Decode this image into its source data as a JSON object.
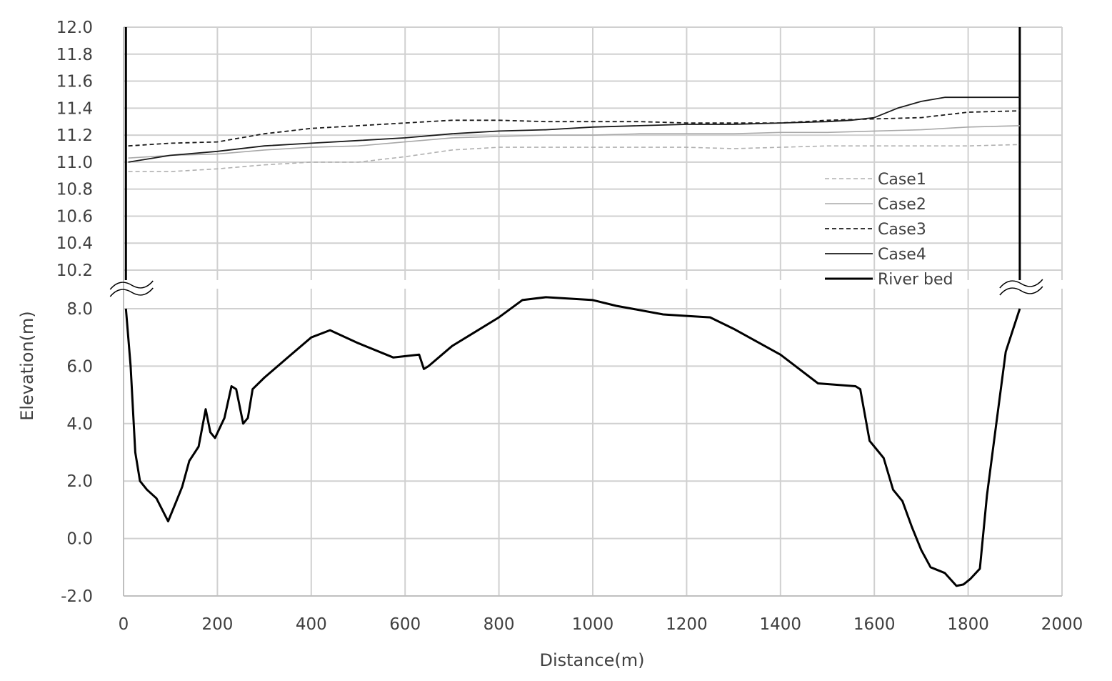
{
  "chart_data": {
    "type": "line",
    "title": "",
    "xlabel": "Distance(m)",
    "ylabel": "Elevation(m)",
    "xlim": [
      0,
      2000
    ],
    "xticks": [
      "0",
      "200",
      "400",
      "600",
      "800",
      "1000",
      "1200",
      "1400",
      "1600",
      "1800",
      "2000"
    ],
    "axis_break": "between 10.2 and 8.0 (wavy break marks on both side walls)",
    "upper_panel": {
      "ylim": [
        10.2,
        12.0
      ],
      "yticks": [
        "12.0",
        "11.8",
        "11.6",
        "11.4",
        "11.2",
        "11.0",
        "10.8",
        "10.6",
        "10.4",
        "10.2"
      ]
    },
    "lower_panel": {
      "ylim": [
        -2.0,
        8.0
      ],
      "yticks": [
        "8.0",
        "6.0",
        "4.0",
        "2.0",
        "0.0",
        "-2.0"
      ]
    },
    "grid": true,
    "legend_position": "right, inside plot area near the axis break",
    "series": [
      {
        "name": "Case1",
        "panel": "upper",
        "style": "dashed",
        "color": "#b0b0b0",
        "x": [
          10,
          100,
          200,
          300,
          400,
          500,
          600,
          700,
          800,
          900,
          1000,
          1100,
          1200,
          1300,
          1400,
          1500,
          1600,
          1700,
          1800,
          1910
        ],
        "y": [
          10.93,
          10.93,
          10.95,
          10.98,
          11.0,
          11.0,
          11.04,
          11.09,
          11.11,
          11.11,
          11.11,
          11.11,
          11.11,
          11.1,
          11.11,
          11.12,
          11.12,
          11.12,
          11.12,
          11.13
        ]
      },
      {
        "name": "Case2",
        "panel": "upper",
        "style": "solid",
        "color": "#a8a8a8",
        "x": [
          10,
          100,
          200,
          300,
          400,
          500,
          600,
          700,
          800,
          900,
          1000,
          1100,
          1200,
          1300,
          1400,
          1500,
          1600,
          1700,
          1800,
          1910
        ],
        "y": [
          11.03,
          11.05,
          11.06,
          11.09,
          11.11,
          11.12,
          11.15,
          11.18,
          11.19,
          11.2,
          11.2,
          11.21,
          11.21,
          11.21,
          11.22,
          11.22,
          11.23,
          11.24,
          11.26,
          11.27
        ]
      },
      {
        "name": "Case3",
        "panel": "upper",
        "style": "dashed",
        "color": "#1a1a1a",
        "x": [
          10,
          100,
          200,
          300,
          400,
          500,
          600,
          700,
          800,
          900,
          1000,
          1100,
          1200,
          1300,
          1400,
          1500,
          1600,
          1700,
          1800,
          1910
        ],
        "y": [
          11.12,
          11.14,
          11.15,
          11.21,
          11.25,
          11.27,
          11.29,
          11.31,
          11.31,
          11.3,
          11.3,
          11.3,
          11.29,
          11.29,
          11.29,
          11.31,
          11.32,
          11.33,
          11.37,
          11.38
        ]
      },
      {
        "name": "Case4",
        "panel": "upper",
        "style": "solid",
        "color": "#1a1a1a",
        "x": [
          10,
          100,
          200,
          300,
          400,
          500,
          600,
          700,
          800,
          900,
          1000,
          1100,
          1200,
          1300,
          1400,
          1500,
          1550,
          1600,
          1650,
          1700,
          1750,
          1800,
          1910
        ],
        "y": [
          11.0,
          11.05,
          11.08,
          11.12,
          11.14,
          11.16,
          11.18,
          11.21,
          11.23,
          11.24,
          11.26,
          11.27,
          11.28,
          11.28,
          11.29,
          11.3,
          11.31,
          11.33,
          11.4,
          11.45,
          11.48,
          11.48,
          11.48
        ]
      },
      {
        "name": "River bed",
        "panel": "lower",
        "style": "solid",
        "color": "#000000",
        "x": [
          5,
          15,
          25,
          35,
          50,
          70,
          95,
          110,
          125,
          140,
          160,
          175,
          185,
          195,
          215,
          230,
          240,
          255,
          265,
          275,
          300,
          350,
          400,
          440,
          500,
          575,
          630,
          640,
          650,
          700,
          750,
          800,
          850,
          900,
          1000,
          1050,
          1150,
          1200,
          1250,
          1300,
          1400,
          1480,
          1560,
          1570,
          1590,
          1610,
          1620,
          1640,
          1660,
          1680,
          1700,
          1720,
          1750,
          1775,
          1790,
          1805,
          1825,
          1840,
          1860,
          1880,
          1900,
          1910
        ],
        "y": [
          8.0,
          6.0,
          3.0,
          2.0,
          1.7,
          1.4,
          0.6,
          1.2,
          1.8,
          2.7,
          3.2,
          4.5,
          3.7,
          3.5,
          4.2,
          5.3,
          5.2,
          4.0,
          4.2,
          5.2,
          5.6,
          6.3,
          7.0,
          7.25,
          6.8,
          6.3,
          6.4,
          5.9,
          6.0,
          6.7,
          7.2,
          7.7,
          8.3,
          8.4,
          8.3,
          8.1,
          7.8,
          7.75,
          7.7,
          7.3,
          6.4,
          5.4,
          5.3,
          5.2,
          3.4,
          3.0,
          2.8,
          1.7,
          1.3,
          0.4,
          -0.4,
          -1.0,
          -1.2,
          -1.65,
          -1.6,
          -1.4,
          -1.05,
          1.5,
          4.0,
          6.5,
          7.5,
          8.0
        ]
      }
    ]
  }
}
